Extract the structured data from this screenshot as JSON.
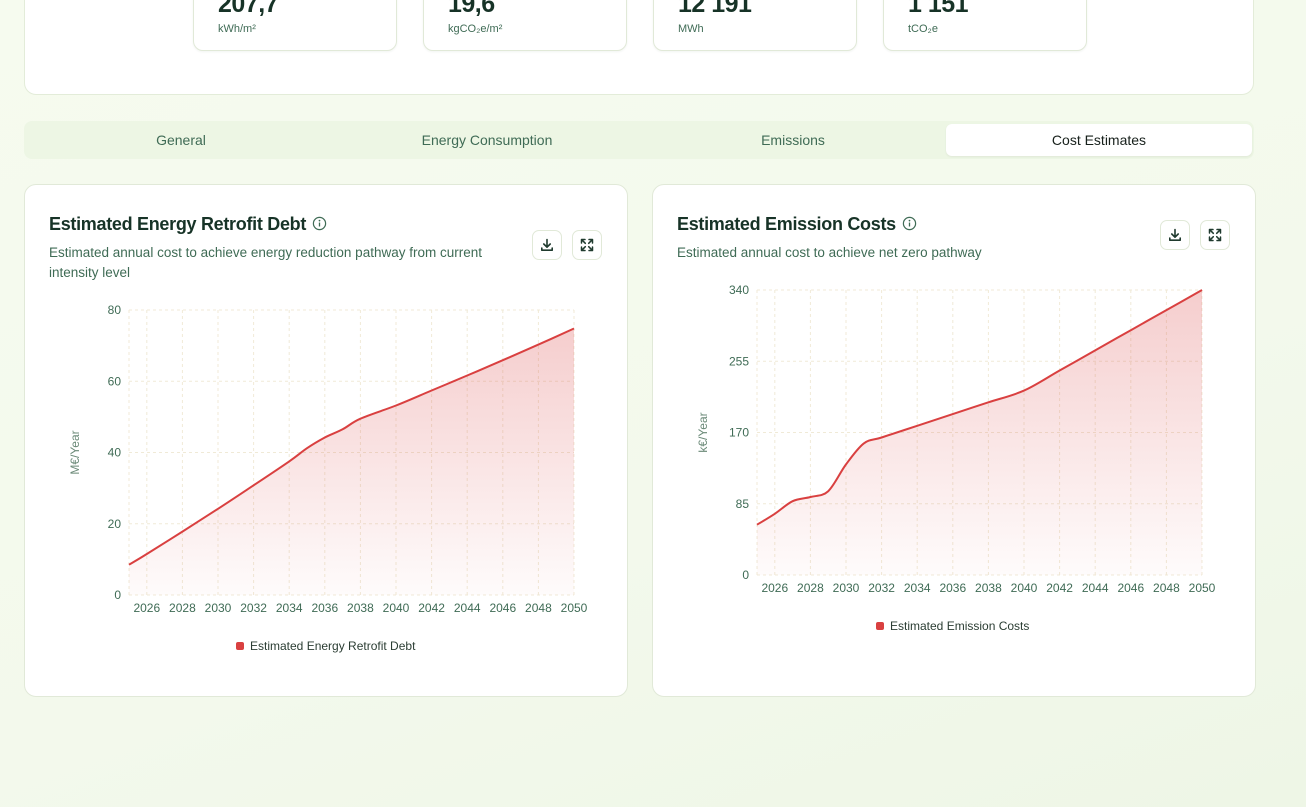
{
  "metrics": [
    {
      "value": "207,7",
      "unit": "kWh/m²"
    },
    {
      "value": "19,6",
      "unit": "kgCO₂e/m²"
    },
    {
      "value": "12 191",
      "unit": "MWh"
    },
    {
      "value": "1 151",
      "unit": "tCO₂e"
    }
  ],
  "tabs": [
    {
      "label": "General"
    },
    {
      "label": "Energy Consumption"
    },
    {
      "label": "Emissions"
    },
    {
      "label": "Cost Estimates"
    }
  ],
  "active_tab": "Cost Estimates",
  "icons": {
    "info": "info-icon",
    "download": "download-icon",
    "fullscreen": "expand-icon"
  },
  "colors": {
    "series": "#d94040",
    "accent": "#173327",
    "grid": "#f0ead7"
  },
  "cards": [
    {
      "title": "Estimated Energy Retrofit Debt",
      "subtitle": "Estimated annual cost to achieve energy reduction pathway from current intensity level",
      "legend": "Estimated Energy Retrofit Debt"
    },
    {
      "title": "Estimated Emission Costs",
      "subtitle": "Estimated annual cost to achieve net zero pathway",
      "legend": "Estimated Emission Costs"
    }
  ],
  "chart_data": [
    {
      "type": "area",
      "title": "Estimated Energy Retrofit Debt",
      "xlabel": "",
      "ylabel": "M€/Year",
      "xlim": [
        2025,
        2050
      ],
      "ylim": [
        0,
        80
      ],
      "yticks": [
        0,
        20,
        40,
        60,
        80
      ],
      "xticks": [
        2026,
        2028,
        2030,
        2032,
        2034,
        2036,
        2038,
        2040,
        2042,
        2044,
        2046,
        2048,
        2050
      ],
      "grid": true,
      "legend": "bottom-center",
      "series": [
        {
          "name": "Estimated Energy Retrofit Debt",
          "x": [
            2025,
            2026,
            2028,
            2030,
            2032,
            2034,
            2035,
            2036,
            2037,
            2038,
            2040,
            2042,
            2044,
            2046,
            2048,
            2050
          ],
          "values": [
            8.5,
            11.5,
            17.8,
            24.2,
            30.8,
            37.5,
            41.2,
            44.2,
            46.5,
            49.5,
            53.2,
            57.4,
            61.6,
            65.9,
            70.3,
            74.8
          ]
        }
      ]
    },
    {
      "type": "area",
      "title": "Estimated Emission Costs",
      "xlabel": "",
      "ylabel": "k€/Year",
      "xlim": [
        2025,
        2050
      ],
      "ylim": [
        0,
        340
      ],
      "yticks": [
        0,
        85,
        170,
        255,
        340
      ],
      "xticks": [
        2026,
        2028,
        2030,
        2032,
        2034,
        2036,
        2038,
        2040,
        2042,
        2044,
        2046,
        2048,
        2050
      ],
      "grid": true,
      "legend": "bottom-center",
      "series": [
        {
          "name": "Estimated Emission Costs",
          "x": [
            2025,
            2026,
            2027,
            2028,
            2029,
            2030,
            2031,
            2032,
            2034,
            2036,
            2038,
            2040,
            2042,
            2044,
            2046,
            2048,
            2050
          ],
          "values": [
            60,
            73,
            88,
            93,
            100,
            132,
            157,
            164,
            178,
            192,
            206,
            220,
            244,
            268,
            292,
            316,
            340
          ]
        }
      ]
    }
  ]
}
